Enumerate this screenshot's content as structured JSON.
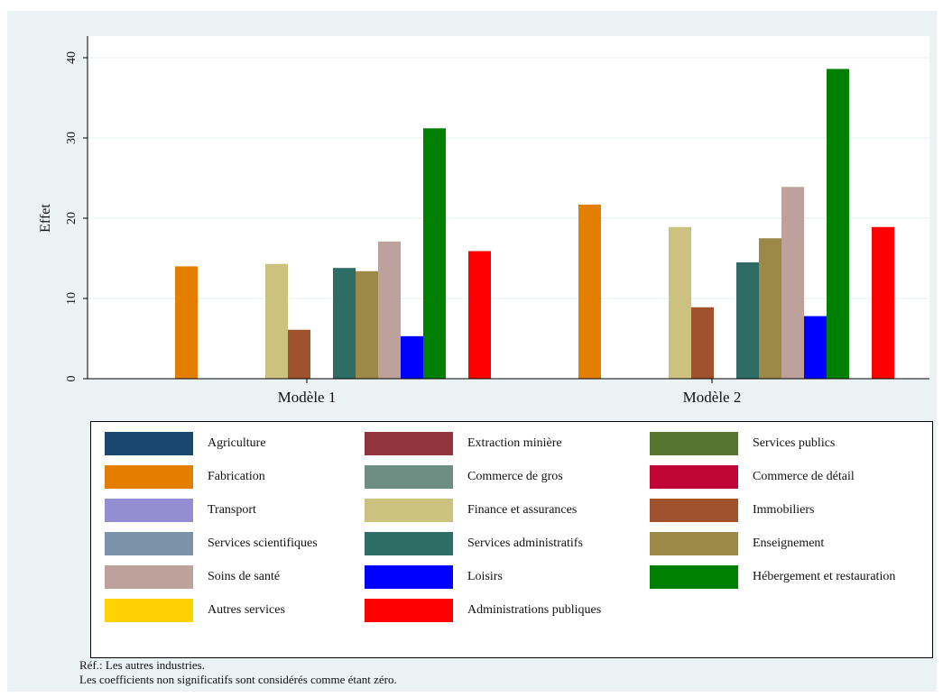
{
  "chart_data": {
    "type": "bar",
    "title": "",
    "xlabel": "",
    "ylabel": "Effet",
    "ylim": [
      0,
      43
    ],
    "yticks": [
      0,
      10,
      20,
      30,
      40
    ],
    "grid": true,
    "legend_position": "bottom",
    "categories": [
      "Modèle 1",
      "Modèle 2"
    ],
    "series": [
      {
        "name": "Agriculture",
        "color": "#1a476f",
        "values": [
          0,
          0
        ]
      },
      {
        "name": "Extraction minière",
        "color": "#90353b",
        "values": [
          0,
          0
        ]
      },
      {
        "name": "Services publics",
        "color": "#55752f",
        "values": [
          0,
          0
        ]
      },
      {
        "name": "Fabrication",
        "color": "#e37e00",
        "values": [
          14,
          21.7
        ]
      },
      {
        "name": "Commerce de gros",
        "color": "#6e8e84",
        "values": [
          0,
          0
        ]
      },
      {
        "name": "Commerce de détail",
        "color": "#c10534",
        "values": [
          0,
          0
        ]
      },
      {
        "name": "Transport",
        "color": "#938dd2",
        "values": [
          0,
          0
        ]
      },
      {
        "name": "Finance et assurances",
        "color": "#cac27e",
        "values": [
          14.3,
          18.9
        ]
      },
      {
        "name": "Immobiliers",
        "color": "#a0522d",
        "values": [
          6.1,
          8.9
        ]
      },
      {
        "name": "Services scientifiques",
        "color": "#7b92a8",
        "values": [
          0,
          0
        ]
      },
      {
        "name": "Services administratifs",
        "color": "#2d6d66",
        "values": [
          13.8,
          14.5
        ]
      },
      {
        "name": "Enseignement",
        "color": "#9c8847",
        "values": [
          13.4,
          17.5
        ]
      },
      {
        "name": "Soins de santé",
        "color": "#bfa19c",
        "values": [
          17.1,
          23.9
        ]
      },
      {
        "name": "Loisirs",
        "color": "#0000ff",
        "values": [
          5.3,
          7.8
        ]
      },
      {
        "name": "Hébergement et restauration",
        "color": "#008000",
        "values": [
          31.2,
          38.6
        ]
      },
      {
        "name": "Autres services",
        "color": "#ffd200",
        "values": [
          0,
          0
        ]
      },
      {
        "name": "Administrations publiques",
        "color": "#ff0000",
        "values": [
          15.9,
          18.9
        ]
      }
    ]
  },
  "notes": {
    "line1": "Réf.: Les autres industries.",
    "line2": "Les coefficients non significatifs sont considérés comme étant zéro."
  }
}
